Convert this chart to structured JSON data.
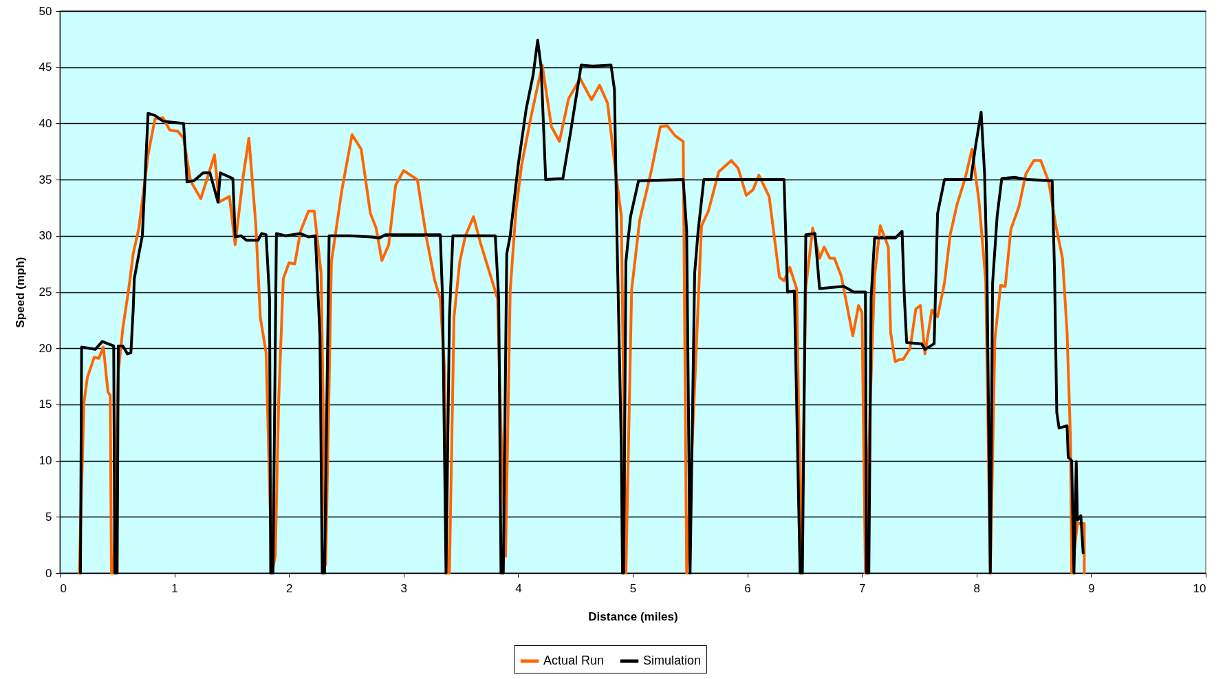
{
  "chart_data": {
    "type": "line",
    "xlabel": "Distance (miles)",
    "ylabel": "Speed (mph)",
    "xlim": [
      0,
      10
    ],
    "xticks": [
      0,
      1,
      2,
      3,
      4,
      5,
      6,
      7,
      8,
      9,
      10
    ],
    "ylim": [
      0,
      50
    ],
    "yticks": [
      0,
      5,
      10,
      15,
      20,
      25,
      30,
      35,
      40,
      45,
      50
    ],
    "grid": "y",
    "legend": "bottom",
    "line_style": "solid",
    "marker": "none",
    "series": [
      {
        "name": "Actual Run",
        "color": "#ff6600",
        "x": [
          0.17,
          0.21,
          0.24,
          0.3,
          0.34,
          0.38,
          0.42,
          0.44,
          0.45,
          0.47,
          0.51,
          0.55,
          0.6,
          0.64,
          0.69,
          0.77,
          0.83,
          0.9,
          0.96,
          1.03,
          1.08,
          1.14,
          1.23,
          1.35,
          1.39,
          1.48,
          1.53,
          1.6,
          1.65,
          1.71,
          1.75,
          1.8,
          1.85,
          1.88,
          1.91,
          1.95,
          2.0,
          2.05,
          2.1,
          2.17,
          2.22,
          2.28,
          2.32,
          2.37,
          2.46,
          2.55,
          2.63,
          2.71,
          2.76,
          2.81,
          2.87,
          2.93,
          3.0,
          3.12,
          3.2,
          3.27,
          3.32,
          3.36,
          3.38,
          3.4,
          3.44,
          3.49,
          3.54,
          3.61,
          3.67,
          3.82,
          3.85,
          3.89,
          3.93,
          3.98,
          4.03,
          4.11,
          4.21,
          4.29,
          4.36,
          4.44,
          4.54,
          4.64,
          4.71,
          4.78,
          4.85,
          4.9,
          4.94,
          4.99,
          5.06,
          5.16,
          5.24,
          5.3,
          5.37,
          5.44,
          5.47,
          5.6,
          5.66,
          5.75,
          5.86,
          5.92,
          5.99,
          6.05,
          6.1,
          6.19,
          6.28,
          6.32,
          6.37,
          6.43,
          6.47,
          6.51,
          6.57,
          6.63,
          6.67,
          6.72,
          6.76,
          6.82,
          6.92,
          6.97,
          7.0,
          7.03,
          7.07,
          7.11,
          7.16,
          7.23,
          7.25,
          7.29,
          7.33,
          7.36,
          7.42,
          7.47,
          7.51,
          7.55,
          7.61,
          7.66,
          7.72,
          7.77,
          7.83,
          7.9,
          7.96,
          8.02,
          8.08,
          8.12,
          8.16,
          8.21,
          8.25,
          8.3,
          8.37,
          8.43,
          8.5,
          8.56,
          8.63,
          8.69,
          8.75,
          8.79,
          8.82,
          8.83,
          8.88,
          8.94,
          8.94
        ],
        "values": [
          0,
          15.1,
          17.4,
          19.2,
          19.1,
          20.1,
          16.1,
          15.8,
          0,
          0,
          17.8,
          21.8,
          25.2,
          28.4,
          30.7,
          37.2,
          40.4,
          40.5,
          39.4,
          39.3,
          38.7,
          34.9,
          33.3,
          37.2,
          33,
          33.5,
          29.2,
          35.3,
          38.7,
          31,
          22.7,
          19.6,
          0,
          1.5,
          15.4,
          26.2,
          27.6,
          27.5,
          30.4,
          32.2,
          32.2,
          26.7,
          0.7,
          27.7,
          34,
          39,
          37.7,
          32,
          30.7,
          27.8,
          29.2,
          34.5,
          35.8,
          35,
          29.8,
          26.1,
          24.4,
          17.7,
          0,
          0,
          22.8,
          27.7,
          30,
          31.7,
          29.4,
          24.4,
          12.8,
          1.5,
          25.1,
          32.2,
          36.3,
          40.5,
          45.2,
          39.7,
          38.4,
          42.2,
          44,
          42.1,
          43.4,
          41.8,
          35.7,
          31.8,
          0,
          25.2,
          31.4,
          35.7,
          39.7,
          39.8,
          38.9,
          38.4,
          0,
          30.9,
          32.2,
          35.7,
          36.7,
          36,
          33.6,
          34.1,
          35.4,
          33.5,
          26.3,
          26,
          27.2,
          25.3,
          0,
          25.4,
          30.7,
          28,
          29,
          28,
          28,
          26.4,
          21.1,
          23.8,
          23.2,
          0,
          14.5,
          26.4,
          30.9,
          29,
          21.4,
          18.8,
          19,
          19,
          20,
          23.5,
          23.8,
          19.5,
          23.4,
          22.8,
          25.8,
          30.1,
          32.8,
          35.1,
          37.7,
          33.2,
          26,
          0,
          20.8,
          25.6,
          25.5,
          30.6,
          32.6,
          35.5,
          36.7,
          36.7,
          34.8,
          31,
          28,
          21.4,
          11.8,
          0,
          4.4,
          4.4,
          0
        ]
      },
      {
        "name": "Simulation",
        "color": "#000000",
        "x": [
          0.18,
          0.19,
          0.31,
          0.37,
          0.47,
          0.48,
          0.5,
          0.51,
          0.55,
          0.59,
          0.62,
          0.64,
          0.65,
          0.69,
          0.72,
          0.77,
          0.83,
          0.9,
          1.08,
          1.11,
          1.17,
          1.25,
          1.31,
          1.38,
          1.4,
          1.51,
          1.53,
          1.58,
          1.63,
          1.73,
          1.76,
          1.8,
          1.83,
          1.84,
          1.86,
          1.89,
          1.97,
          2.1,
          2.17,
          2.23,
          2.27,
          2.29,
          2.31,
          2.35,
          2.53,
          2.72,
          2.79,
          2.84,
          3.32,
          3.34,
          3.37,
          3.4,
          3.43,
          3.8,
          3.83,
          3.85,
          3.87,
          3.9,
          3.93,
          4.0,
          4.07,
          4.13,
          4.17,
          4.2,
          4.24,
          4.39,
          4.46,
          4.55,
          4.65,
          4.81,
          4.84,
          4.86,
          4.9,
          4.91,
          4.92,
          4.94,
          4.98,
          5.05,
          5.44,
          5.47,
          5.5,
          5.54,
          5.57,
          5.62,
          6.32,
          6.35,
          6.41,
          6.46,
          6.48,
          6.51,
          6.59,
          6.63,
          6.84,
          6.93,
          7.03,
          7.04,
          7.06,
          7.08,
          7.11,
          7.29,
          7.35,
          7.37,
          7.39,
          7.52,
          7.55,
          7.63,
          7.66,
          7.72,
          7.95,
          7.99,
          8.04,
          8.07,
          8.09,
          8.1,
          8.12,
          8.14,
          8.18,
          8.22,
          8.33,
          8.45,
          8.66,
          8.68,
          8.7,
          8.72,
          8.79,
          8.8,
          8.83,
          8.85,
          8.87,
          8.88,
          8.91,
          8.93
        ],
        "values": [
          0,
          20.1,
          19.9,
          20.6,
          20.2,
          0,
          0,
          20.2,
          20.2,
          19.5,
          19.6,
          23.4,
          26.2,
          28.4,
          30,
          40.9,
          40.7,
          40.2,
          40,
          34.8,
          34.9,
          35.6,
          35.6,
          33,
          35.6,
          35.1,
          29.9,
          30,
          29.6,
          29.6,
          30.2,
          30.1,
          24.4,
          0,
          0,
          30.2,
          30,
          30.2,
          29.9,
          30,
          21.1,
          0,
          0,
          30,
          30,
          29.9,
          29.8,
          30.1,
          30.1,
          24.4,
          0,
          22.8,
          30,
          30,
          24.4,
          0,
          0,
          28.4,
          30,
          36.3,
          41.3,
          44.3,
          47.4,
          45,
          35,
          35.1,
          39.4,
          45.2,
          45.1,
          45.2,
          43,
          31,
          11.1,
          0,
          0,
          27.7,
          31.7,
          34.9,
          35,
          30.5,
          0,
          26.7,
          30.4,
          35,
          35,
          25,
          25.1,
          0,
          0,
          30.1,
          30.2,
          25.3,
          25.5,
          25,
          25,
          0,
          0,
          24.5,
          29.8,
          29.8,
          30.4,
          24.5,
          20.5,
          20.4,
          19.9,
          20.4,
          32,
          35,
          35,
          37.9,
          41,
          35.5,
          27.4,
          18.5,
          0,
          25.8,
          31.8,
          35.1,
          35.2,
          35,
          34.9,
          27,
          14.3,
          12.9,
          13.1,
          10.3,
          10,
          0,
          9.9,
          4.7,
          5.1,
          1.8
        ]
      }
    ]
  }
}
